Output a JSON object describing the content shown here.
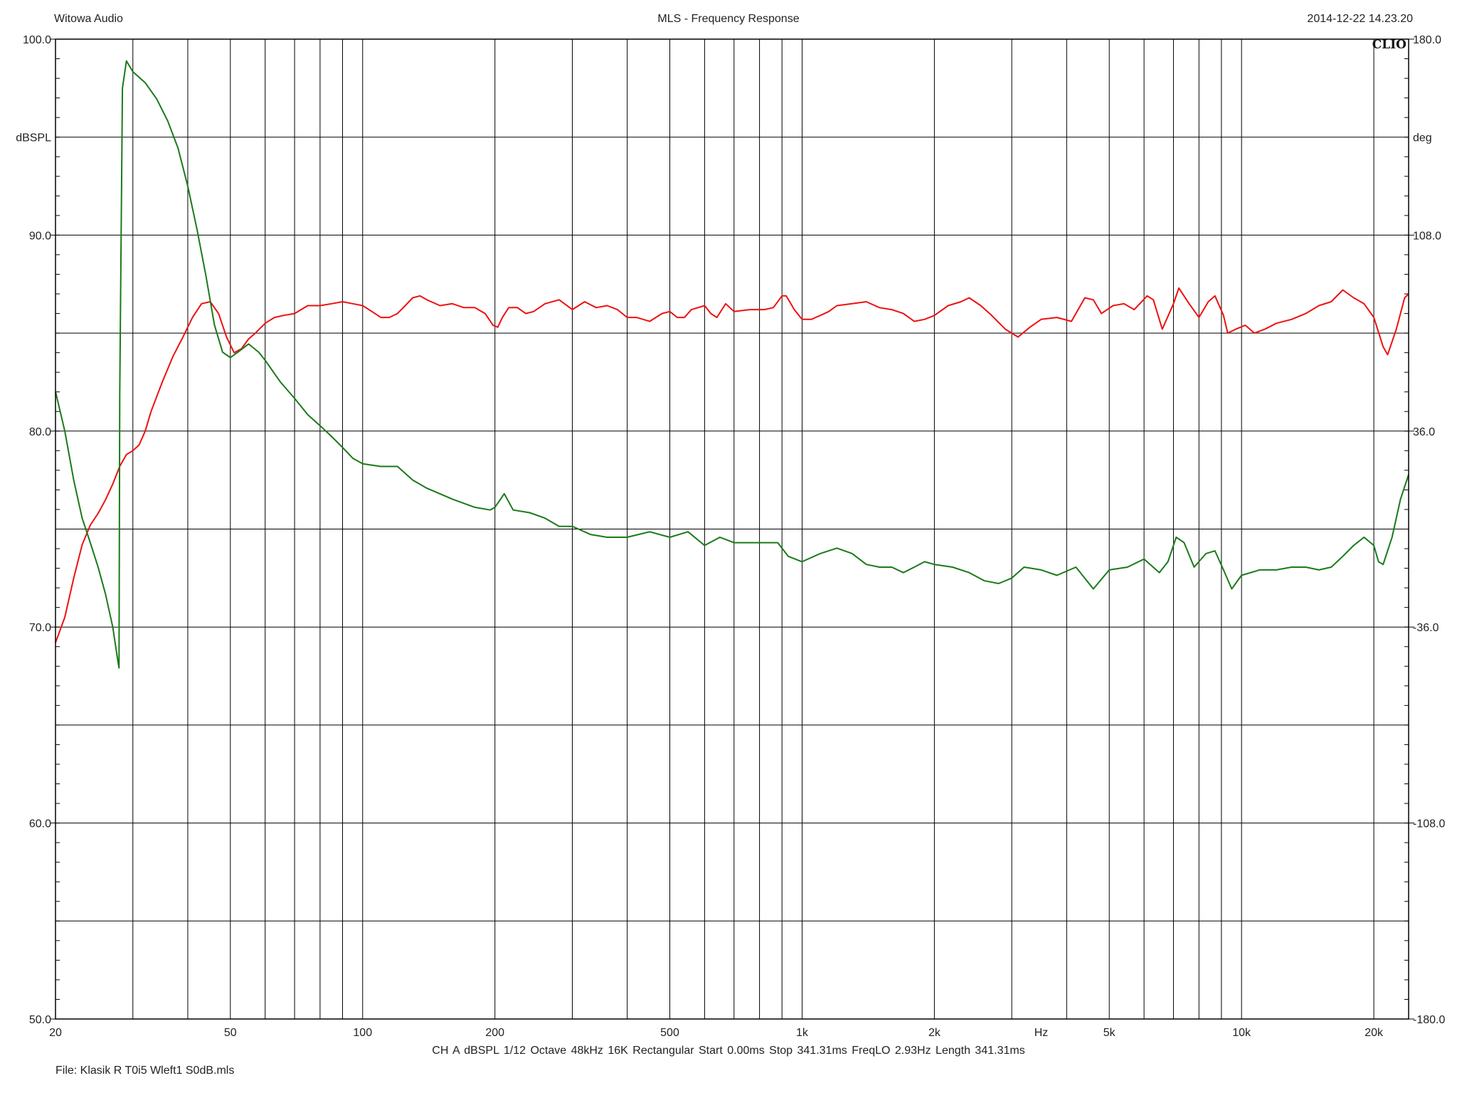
{
  "header": {
    "left": "Witowa Audio",
    "center": "MLS - Frequency Response",
    "right": "2014-12-22 14.23.20"
  },
  "brand": "CLIO",
  "footer": {
    "params": "CH A   dBSPL   1/12 Octave   48kHz   16K   Rectangular   Start 0.00ms   Stop 341.31ms   FreqLO 2.93Hz   Length 341.31ms",
    "file": "File: Klasik R T0i5 Wleft1 S0dB.mls"
  },
  "colors": {
    "magnitude": "#ee1111",
    "phase": "#1a7a1a",
    "grid": "#000000"
  },
  "chart_data": {
    "type": "line",
    "x_scale": "log",
    "xlim": [
      20,
      24000
    ],
    "ylim": [
      50,
      100
    ],
    "y2lim": [
      -180,
      180
    ],
    "ylabel": "dBSPL",
    "y2label": "deg",
    "xlabel": "Hz",
    "x_ticks": [
      {
        "value": 20,
        "label": "20"
      },
      {
        "value": 50,
        "label": "50"
      },
      {
        "value": 100,
        "label": "100"
      },
      {
        "value": 200,
        "label": "200"
      },
      {
        "value": 500,
        "label": "500"
      },
      {
        "value": 1000,
        "label": "1k"
      },
      {
        "value": 2000,
        "label": "2k"
      },
      {
        "value": 3500,
        "label": "Hz"
      },
      {
        "value": 5000,
        "label": "5k"
      },
      {
        "value": 10000,
        "label": "10k"
      },
      {
        "value": 20000,
        "label": "20k"
      }
    ],
    "x_grid": [
      20,
      30,
      40,
      50,
      60,
      70,
      80,
      90,
      100,
      200,
      300,
      400,
      500,
      600,
      700,
      800,
      900,
      1000,
      2000,
      3000,
      4000,
      5000,
      6000,
      7000,
      8000,
      9000,
      10000,
      20000
    ],
    "y_ticks": [
      {
        "value": 100,
        "label": "100.0"
      },
      {
        "value": 90,
        "label": "90.0"
      },
      {
        "value": 80,
        "label": "80.0"
      },
      {
        "value": 70,
        "label": "70.0"
      },
      {
        "value": 60,
        "label": "60.0"
      },
      {
        "value": 50,
        "label": "50.0"
      }
    ],
    "y2_ticks": [
      {
        "value": 180,
        "label": "180.0"
      },
      {
        "value": 108,
        "label": "108.0"
      },
      {
        "value": 36,
        "label": "36.0"
      },
      {
        "value": -36,
        "label": "-36.0"
      },
      {
        "value": -108,
        "label": "-108.0"
      },
      {
        "value": -180,
        "label": "-180.0"
      }
    ],
    "y_grid": [
      95,
      90,
      85,
      80,
      75,
      70,
      65,
      60,
      55
    ],
    "grid": true,
    "series": [
      {
        "axis": "left",
        "color": "#ee1111",
        "points": [
          [
            20,
            69.2
          ],
          [
            21,
            70.5
          ],
          [
            22,
            72.5
          ],
          [
            23,
            74.2
          ],
          [
            24,
            75.2
          ],
          [
            25,
            75.8
          ],
          [
            26,
            76.5
          ],
          [
            27,
            77.3
          ],
          [
            28,
            78.2
          ],
          [
            29,
            78.8
          ],
          [
            30,
            79.0
          ],
          [
            31,
            79.3
          ],
          [
            32,
            80.0
          ],
          [
            33,
            81.0
          ],
          [
            35,
            82.5
          ],
          [
            37,
            83.8
          ],
          [
            39,
            84.8
          ],
          [
            41,
            85.8
          ],
          [
            43,
            86.5
          ],
          [
            45,
            86.6
          ],
          [
            47,
            86.0
          ],
          [
            49,
            84.8
          ],
          [
            51,
            84.0
          ],
          [
            53,
            84.2
          ],
          [
            55,
            84.7
          ],
          [
            57,
            85.0
          ],
          [
            60,
            85.5
          ],
          [
            63,
            85.8
          ],
          [
            66,
            85.9
          ],
          [
            70,
            86.0
          ],
          [
            75,
            86.4
          ],
          [
            80,
            86.4
          ],
          [
            85,
            86.5
          ],
          [
            90,
            86.6
          ],
          [
            95,
            86.5
          ],
          [
            100,
            86.4
          ],
          [
            105,
            86.1
          ],
          [
            110,
            85.8
          ],
          [
            115,
            85.8
          ],
          [
            120,
            86.0
          ],
          [
            125,
            86.4
          ],
          [
            130,
            86.8
          ],
          [
            135,
            86.9
          ],
          [
            140,
            86.7
          ],
          [
            150,
            86.4
          ],
          [
            160,
            86.5
          ],
          [
            170,
            86.3
          ],
          [
            180,
            86.3
          ],
          [
            190,
            86.0
          ],
          [
            198,
            85.4
          ],
          [
            203,
            85.3
          ],
          [
            208,
            85.8
          ],
          [
            215,
            86.3
          ],
          [
            225,
            86.3
          ],
          [
            235,
            86.0
          ],
          [
            245,
            86.1
          ],
          [
            260,
            86.5
          ],
          [
            280,
            86.7
          ],
          [
            300,
            86.2
          ],
          [
            320,
            86.6
          ],
          [
            340,
            86.3
          ],
          [
            360,
            86.4
          ],
          [
            380,
            86.2
          ],
          [
            400,
            85.8
          ],
          [
            420,
            85.8
          ],
          [
            450,
            85.6
          ],
          [
            480,
            86.0
          ],
          [
            500,
            86.1
          ],
          [
            520,
            85.8
          ],
          [
            540,
            85.8
          ],
          [
            560,
            86.2
          ],
          [
            600,
            86.4
          ],
          [
            620,
            86.0
          ],
          [
            640,
            85.8
          ],
          [
            670,
            86.5
          ],
          [
            700,
            86.1
          ],
          [
            760,
            86.2
          ],
          [
            820,
            86.2
          ],
          [
            860,
            86.3
          ],
          [
            900,
            86.9
          ],
          [
            920,
            86.9
          ],
          [
            960,
            86.2
          ],
          [
            1000,
            85.7
          ],
          [
            1050,
            85.7
          ],
          [
            1100,
            85.9
          ],
          [
            1150,
            86.1
          ],
          [
            1200,
            86.4
          ],
          [
            1300,
            86.5
          ],
          [
            1400,
            86.6
          ],
          [
            1500,
            86.3
          ],
          [
            1600,
            86.2
          ],
          [
            1700,
            86.0
          ],
          [
            1800,
            85.6
          ],
          [
            1900,
            85.7
          ],
          [
            2000,
            85.9
          ],
          [
            2150,
            86.4
          ],
          [
            2300,
            86.6
          ],
          [
            2400,
            86.8
          ],
          [
            2550,
            86.4
          ],
          [
            2700,
            85.9
          ],
          [
            2900,
            85.2
          ],
          [
            3100,
            84.8
          ],
          [
            3300,
            85.3
          ],
          [
            3500,
            85.7
          ],
          [
            3800,
            85.8
          ],
          [
            4100,
            85.6
          ],
          [
            4400,
            86.8
          ],
          [
            4600,
            86.7
          ],
          [
            4800,
            86.0
          ],
          [
            5100,
            86.4
          ],
          [
            5400,
            86.5
          ],
          [
            5700,
            86.2
          ],
          [
            6100,
            86.9
          ],
          [
            6300,
            86.7
          ],
          [
            6600,
            85.2
          ],
          [
            7000,
            86.5
          ],
          [
            7200,
            87.3
          ],
          [
            7600,
            86.5
          ],
          [
            8000,
            85.8
          ],
          [
            8400,
            86.6
          ],
          [
            8700,
            86.9
          ],
          [
            9100,
            85.9
          ],
          [
            9300,
            85.0
          ],
          [
            9700,
            85.2
          ],
          [
            10200,
            85.4
          ],
          [
            10700,
            85.0
          ],
          [
            11300,
            85.2
          ],
          [
            12000,
            85.5
          ],
          [
            13000,
            85.7
          ],
          [
            14000,
            86.0
          ],
          [
            15000,
            86.4
          ],
          [
            16000,
            86.6
          ],
          [
            17000,
            87.2
          ],
          [
            18000,
            86.8
          ],
          [
            19000,
            86.5
          ],
          [
            20000,
            85.8
          ],
          [
            21000,
            84.3
          ],
          [
            21500,
            83.9
          ],
          [
            22500,
            85.2
          ],
          [
            23500,
            86.8
          ],
          [
            24000,
            87.0
          ]
        ]
      },
      {
        "axis": "right",
        "color": "#1a7a1a",
        "points": [
          [
            20,
            50.5
          ],
          [
            21,
            36.0
          ],
          [
            22,
            18.0
          ],
          [
            23,
            4.0
          ],
          [
            24,
            -5.0
          ],
          [
            25,
            -14.0
          ],
          [
            26,
            -24.0
          ],
          [
            27,
            -36.0
          ],
          [
            27.7,
            -48.0
          ],
          [
            27.9,
            -51.0
          ],
          [
            28.0,
            49.0
          ],
          [
            28.4,
            162.0
          ],
          [
            29,
            172.0
          ],
          [
            30,
            168.0
          ],
          [
            32,
            164.0
          ],
          [
            34,
            158.0
          ],
          [
            36,
            150.0
          ],
          [
            38,
            140.0
          ],
          [
            40,
            126.0
          ],
          [
            42,
            110.0
          ],
          [
            44,
            93.0
          ],
          [
            46,
            75.0
          ],
          [
            48,
            65.0
          ],
          [
            50,
            63.0
          ],
          [
            52,
            65.0
          ],
          [
            55,
            68.0
          ],
          [
            58,
            65.0
          ],
          [
            60,
            62.0
          ],
          [
            65,
            54.0
          ],
          [
            70,
            48.0
          ],
          [
            75,
            42.0
          ],
          [
            80,
            38.0
          ],
          [
            85,
            34.0
          ],
          [
            90,
            30.0
          ],
          [
            95,
            26.0
          ],
          [
            100,
            24.0
          ],
          [
            110,
            23.0
          ],
          [
            120,
            23.0
          ],
          [
            130,
            18.0
          ],
          [
            140,
            15.0
          ],
          [
            160,
            11.0
          ],
          [
            180,
            8.0
          ],
          [
            195,
            7.0
          ],
          [
            200,
            8.0
          ],
          [
            210,
            13.0
          ],
          [
            220,
            7.0
          ],
          [
            240,
            6.0
          ],
          [
            260,
            4.0
          ],
          [
            280,
            1.0
          ],
          [
            300,
            1.0
          ],
          [
            330,
            -2.0
          ],
          [
            360,
            -3.0
          ],
          [
            400,
            -3.0
          ],
          [
            450,
            -1.0
          ],
          [
            500,
            -3.0
          ],
          [
            550,
            -1.0
          ],
          [
            600,
            -6.0
          ],
          [
            650,
            -3.0
          ],
          [
            700,
            -5.0
          ],
          [
            800,
            -5.0
          ],
          [
            880,
            -5.0
          ],
          [
            930,
            -10.0
          ],
          [
            1000,
            -12.0
          ],
          [
            1100,
            -9.0
          ],
          [
            1200,
            -7.0
          ],
          [
            1300,
            -9.0
          ],
          [
            1400,
            -13.0
          ],
          [
            1500,
            -14.0
          ],
          [
            1600,
            -14.0
          ],
          [
            1700,
            -16.0
          ],
          [
            1800,
            -14.0
          ],
          [
            1900,
            -12.0
          ],
          [
            2000,
            -13.0
          ],
          [
            2200,
            -14.0
          ],
          [
            2400,
            -16.0
          ],
          [
            2600,
            -19.0
          ],
          [
            2800,
            -20.0
          ],
          [
            3000,
            -18.0
          ],
          [
            3200,
            -14.0
          ],
          [
            3500,
            -15.0
          ],
          [
            3800,
            -17.0
          ],
          [
            4200,
            -14.0
          ],
          [
            4600,
            -22.0
          ],
          [
            5000,
            -15.0
          ],
          [
            5500,
            -14.0
          ],
          [
            6000,
            -11.0
          ],
          [
            6500,
            -16.0
          ],
          [
            6800,
            -12.0
          ],
          [
            7100,
            -3.0
          ],
          [
            7400,
            -5.0
          ],
          [
            7800,
            -14.0
          ],
          [
            8300,
            -9.0
          ],
          [
            8700,
            -8.0
          ],
          [
            9100,
            -15.0
          ],
          [
            9500,
            -22.0
          ],
          [
            10000,
            -17.0
          ],
          [
            11000,
            -15.0
          ],
          [
            12000,
            -15.0
          ],
          [
            13000,
            -14.0
          ],
          [
            14000,
            -14.0
          ],
          [
            15000,
            -15.0
          ],
          [
            16000,
            -14.0
          ],
          [
            17000,
            -10.0
          ],
          [
            18000,
            -6.0
          ],
          [
            19000,
            -3.0
          ],
          [
            20000,
            -6.0
          ],
          [
            20500,
            -12.0
          ],
          [
            21000,
            -13.0
          ],
          [
            22000,
            -3.0
          ],
          [
            23000,
            11.0
          ],
          [
            24000,
            20.0
          ]
        ]
      }
    ]
  }
}
